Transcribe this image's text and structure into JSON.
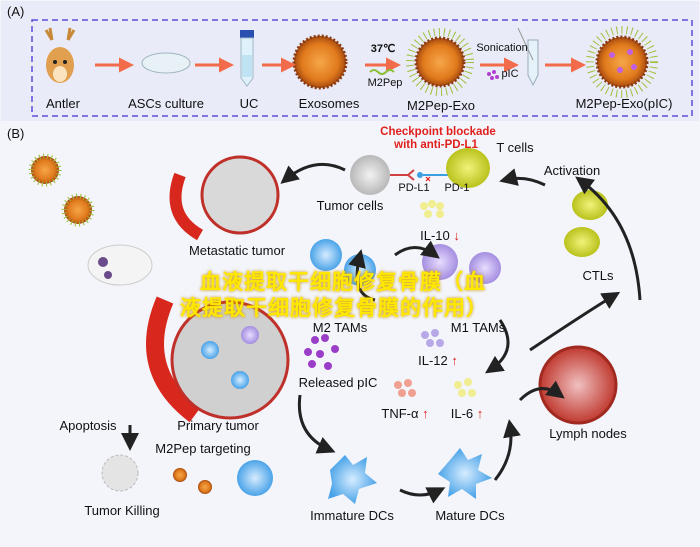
{
  "panel_a": {
    "label": "(A)",
    "steps": [
      "Antler",
      "ASCs culture",
      "UC",
      "Exosomes",
      "M2Pep-Exo",
      "M2Pep-Exo(pIC)"
    ],
    "conditions": {
      "temperature": "37℃",
      "peptide": "M2Pep",
      "sonication": "Sonication",
      "payload": "pIC"
    }
  },
  "panel_b": {
    "label": "(B)",
    "checkpoint": [
      "Checkpoint blockade",
      "with anti-PD-L1"
    ],
    "t_cells": "T cells",
    "pd_l1": "PD-L1",
    "pd_1": "PD-1",
    "tumor_cells": "Tumor cells",
    "metastatic_tumor": "Metastatic tumor",
    "activation": "Activation",
    "il10": "IL-10",
    "ctls": "CTLs",
    "m2_tams": "M2 TAMs",
    "m1_tams": "M1 TAMs",
    "released_pic": "Released pIC",
    "il12": "IL-12",
    "tnfa": "TNF-α",
    "il6": "IL-6",
    "lymph_nodes": "Lymph nodes",
    "apoptosis": "Apoptosis",
    "primary_tumor": "Primary tumor",
    "m2pep_targeting": "M2Pep targeting",
    "tumor_killing": "Tumor Killing",
    "immature_dcs": "Immature DCs",
    "mature_dcs": "Mature DCs",
    "up_arrow": "↑",
    "down_arrow": "↓"
  },
  "watermark": {
    "line1": "血液提取干细胞修复骨膜（血",
    "line2": "液提取干细胞修复骨膜的作用）"
  },
  "colors": {
    "dashed_border": "#5a4fd8",
    "arrow_orange": "#f26b4a",
    "red_text": "#e0201c",
    "tumor_red": "#d8281e",
    "watermark": "#ffe800"
  }
}
